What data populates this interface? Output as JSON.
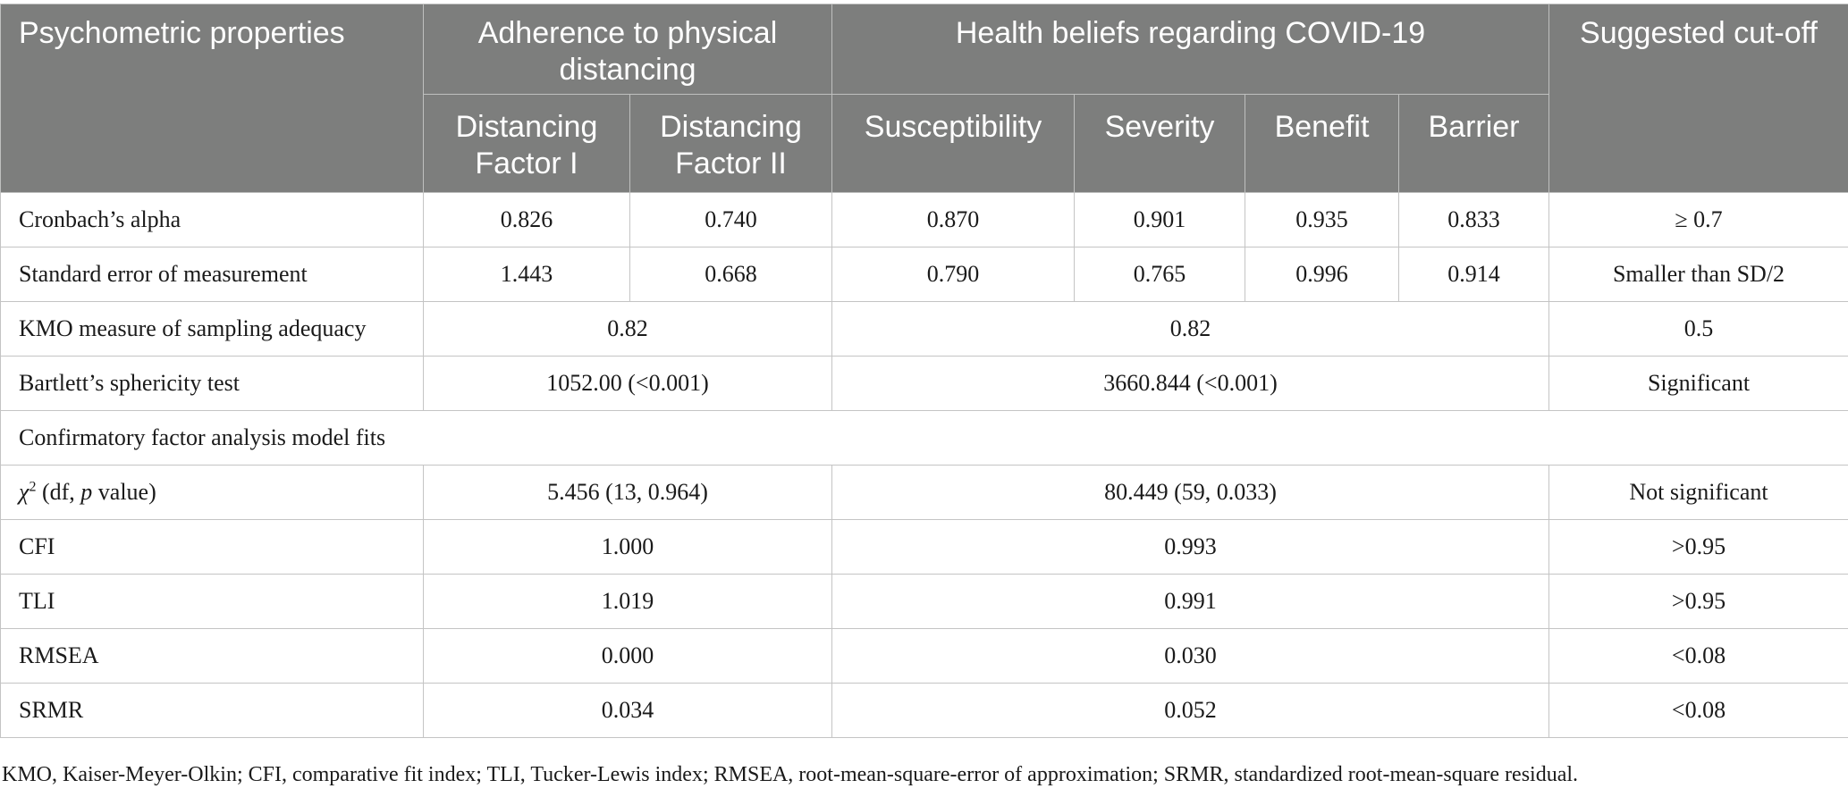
{
  "header": {
    "col_label": "Psychometric properties",
    "group_distancing": "Adherence to physical distancing",
    "group_health": "Health beliefs regarding COVID-19",
    "cutoff": "Suggested cut-off",
    "sub": [
      "Distancing Factor I",
      "Distancing Factor II",
      "Susceptibility",
      "Severity",
      "Benefit",
      "Barrier"
    ]
  },
  "rows": {
    "cronbach": {
      "label": "Cronbach’s alpha",
      "values": [
        "0.826",
        "0.740",
        "0.870",
        "0.901",
        "0.935",
        "0.833"
      ],
      "cutoff": "≥ 0.7"
    },
    "sem": {
      "label": "Standard error of measurement",
      "values": [
        "1.443",
        "0.668",
        "0.790",
        "0.765",
        "0.996",
        "0.914"
      ],
      "cutoff": "Smaller than SD/2"
    },
    "kmo": {
      "label": "KMO measure of sampling adequacy",
      "distancing": "0.82",
      "health": "0.82",
      "cutoff": "0.5"
    },
    "bartlett": {
      "label": "Bartlett’s sphericity test",
      "distancing": "1052.00 (<0.001)",
      "health": "3660.844 (<0.001)",
      "cutoff": "Significant"
    },
    "cfa_section": "Confirmatory factor analysis model fits",
    "chi": {
      "symbol": "χ",
      "sup": "2",
      "label_a": " (df, ",
      "label_p": "p",
      "label_b": " value)",
      "distancing": "5.456 (13, 0.964)",
      "health": "80.449 (59, 0.033)",
      "cutoff": "Not significant"
    },
    "cfi": {
      "label": "CFI",
      "distancing": "1.000",
      "health": "0.993",
      "cutoff": ">0.95"
    },
    "tli": {
      "label": "TLI",
      "distancing": "1.019",
      "health": "0.991",
      "cutoff": ">0.95"
    },
    "rmsea": {
      "label": "RMSEA",
      "distancing": "0.000",
      "health": "0.030",
      "cutoff": "<0.08"
    },
    "srmr": {
      "label": "SRMR",
      "distancing": "0.034",
      "health": "0.052",
      "cutoff": "<0.08"
    }
  },
  "footnote": "KMO, Kaiser-Meyer-Olkin; CFI, comparative fit index; TLI, Tucker-Lewis index; RMSEA, root-mean-square-error of approximation; SRMR, standardized root-mean-square residual."
}
